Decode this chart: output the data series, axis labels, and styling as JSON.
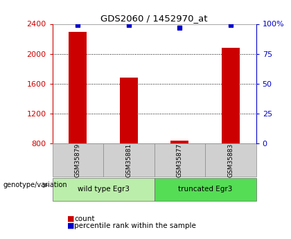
{
  "title": "GDS2060 / 1452970_at",
  "samples": [
    "GSM35879",
    "GSM35881",
    "GSM35877",
    "GSM35883"
  ],
  "counts": [
    2290,
    1680,
    840,
    2080
  ],
  "percentiles": [
    99,
    99,
    97,
    99
  ],
  "ylim_left": [
    800,
    2400
  ],
  "ylim_right": [
    0,
    100
  ],
  "yticks_left": [
    800,
    1200,
    1600,
    2000,
    2400
  ],
  "yticks_right": [
    0,
    25,
    50,
    75,
    100
  ],
  "ytick_right_labels": [
    "0",
    "25",
    "50",
    "75",
    "100%"
  ],
  "bar_color": "#cc0000",
  "dot_color": "#0000cc",
  "bar_width": 0.35,
  "axis_left_color": "#cc0000",
  "axis_right_color": "#0000cc",
  "group1_label": "wild type Egr3",
  "group2_label": "truncated Egr3",
  "group1_color": "#bbeeaa",
  "group2_color": "#55dd55",
  "sample_box_color": "#d0d0d0",
  "legend_count": "count",
  "legend_pct": "percentile rank within the sample",
  "genotype_label": "genotype/variation",
  "grid_dotted_at": [
    1200,
    1600,
    2000
  ]
}
